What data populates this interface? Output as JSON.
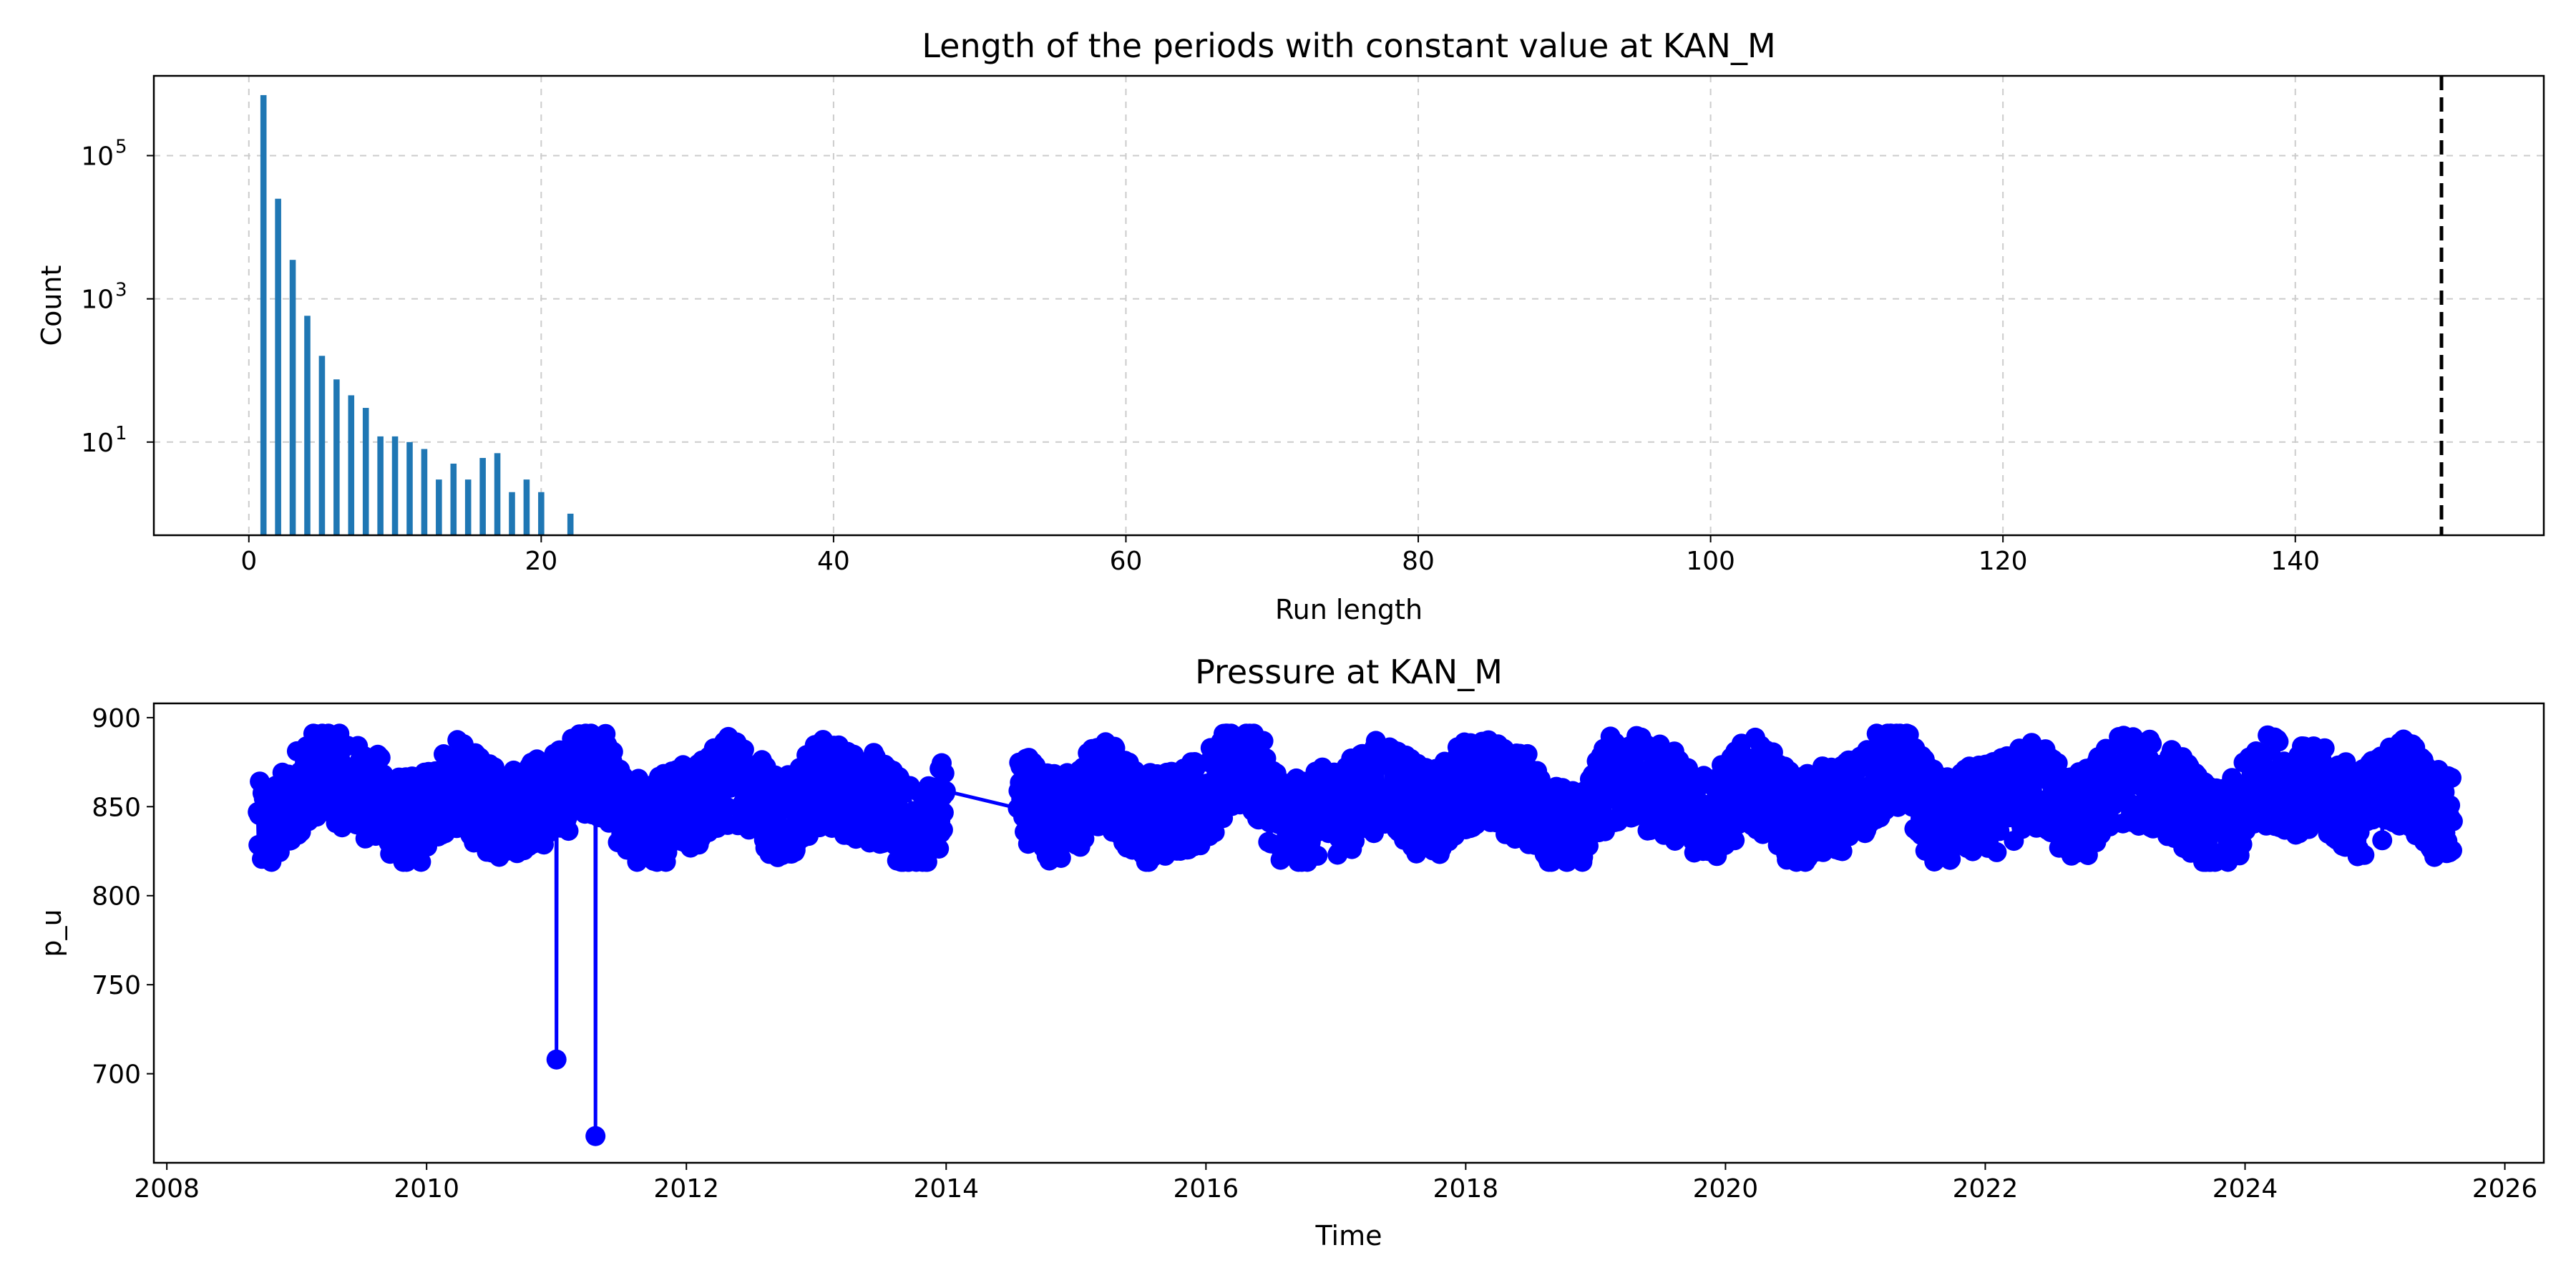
{
  "chart_data": [
    {
      "type": "bar",
      "title": "Length of the periods with constant value at KAN_M",
      "xlabel": "Run length",
      "ylabel": "Count",
      "yscale": "log",
      "xlim": [
        -6.5,
        157
      ],
      "ylim": [
        0.5,
        1300000
      ],
      "x_ticks": [
        0,
        20,
        40,
        60,
        80,
        100,
        120,
        140
      ],
      "y_ticks": [
        {
          "base": "10",
          "exp": "1",
          "value": 10
        },
        {
          "base": "10",
          "exp": "3",
          "value": 1000
        },
        {
          "base": "10",
          "exp": "5",
          "value": 100000
        }
      ],
      "grid": true,
      "bar_color": "#1f77b4",
      "threshold_line": {
        "x": 150,
        "style": "dashed",
        "color": "#000000"
      },
      "run_lengths": [
        1,
        2,
        3,
        4,
        5,
        6,
        7,
        8,
        9,
        10,
        11,
        12,
        13,
        14,
        15,
        16,
        17,
        18,
        19,
        20,
        22
      ],
      "counts": [
        700000,
        25000,
        3500,
        580,
        160,
        75,
        45,
        30,
        12,
        12,
        10,
        8,
        3,
        5,
        3,
        6,
        7,
        2,
        3,
        2,
        1
      ]
    },
    {
      "type": "line",
      "title": "Pressure at KAN_M",
      "xlabel": "Time",
      "ylabel": "p_u",
      "xlim": [
        2007.9,
        2026.3
      ],
      "ylim": [
        650,
        908
      ],
      "x_ticks": [
        2008,
        2010,
        2012,
        2014,
        2016,
        2018,
        2020,
        2022,
        2024,
        2026
      ],
      "y_ticks": [
        700,
        750,
        800,
        850,
        900
      ],
      "grid": false,
      "line_color": "#0000ff",
      "marker": "circle",
      "data_start": 2008.7,
      "data_end": 2025.6,
      "band_low_bound": 825,
      "band_high_bound": 883,
      "outliers": [
        {
          "x": 2011.0,
          "y": 708
        },
        {
          "x": 2011.3,
          "y": 665
        }
      ],
      "gaps": [
        [
          2014.0,
          2014.55
        ]
      ]
    }
  ]
}
